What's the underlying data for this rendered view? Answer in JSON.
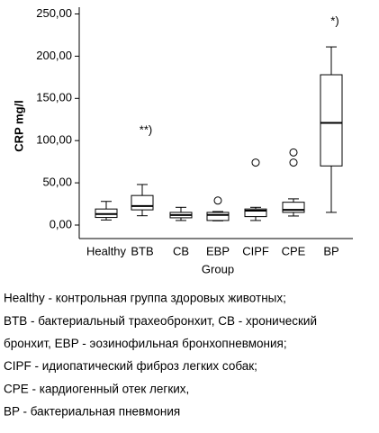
{
  "chart_data": {
    "type": "box",
    "y_label": "CRP mg/l",
    "x_label": "Group",
    "ylim": [
      -16,
      258
    ],
    "yticks": [
      {
        "value": 0,
        "label": "0,00"
      },
      {
        "value": 50,
        "label": "50,00"
      },
      {
        "value": 100,
        "label": "100,00"
      },
      {
        "value": 150,
        "label": "150,00"
      },
      {
        "value": 200,
        "label": "200,00"
      },
      {
        "value": 250,
        "label": "250,00"
      }
    ],
    "categories": [
      "Healthy",
      "BTB",
      "CB",
      "EBP",
      "CIPF",
      "CPE",
      "BP"
    ],
    "boxes": [
      {
        "min": 6,
        "q1": 9,
        "median": 13,
        "q3": 19,
        "max": 28,
        "outliers": []
      },
      {
        "min": 11,
        "q1": 18,
        "median": 22.5,
        "q3": 35,
        "max": 48,
        "outliers": []
      },
      {
        "min": 5.4,
        "q1": 8.6,
        "median": 11.8,
        "q3": 15,
        "max": 21,
        "outliers": []
      },
      {
        "min": 5,
        "q1": 5.4,
        "median": 12,
        "q3": 15,
        "max": 16,
        "outliers": [
          29
        ]
      },
      {
        "min": 5.4,
        "q1": 10,
        "median": 17,
        "q3": 19,
        "max": 21,
        "outliers": [
          74
        ]
      },
      {
        "min": 10.7,
        "q1": 15,
        "median": 18,
        "q3": 27,
        "max": 31,
        "outliers": [
          86,
          74
        ]
      },
      {
        "min": 15,
        "q1": 70,
        "median": 121,
        "q3": 178,
        "max": 211,
        "outliers": []
      }
    ],
    "annotations": [
      {
        "text": "**)",
        "category": "BTB"
      },
      {
        "text": "*)",
        "category": "BP"
      }
    ],
    "color": "#ffffff"
  },
  "caption": [
    "Healthy - контрольная группа здоровых животных;",
    "BTB - бактериальный трахеобронхит, CB - хронический",
    "бронхит, EBP - эозинофильная бронхопневмония;",
    "CIPF - идиопатический фиброз легких собак;",
    "CPE - кардиогенный отек легких,",
    "BP - бактериальная пневмония"
  ]
}
